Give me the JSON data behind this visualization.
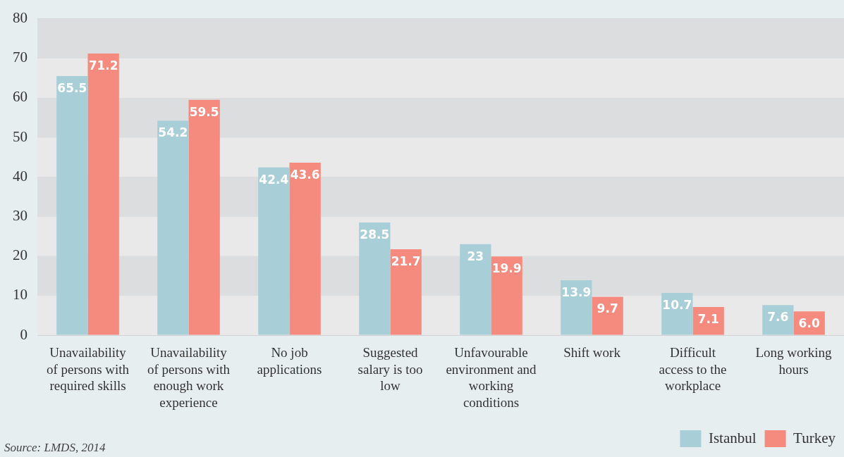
{
  "chart_data": {
    "type": "bar",
    "categories": [
      "Unavailability of persons with required skills",
      "Unavailability of persons with enough work experience",
      "No job applications",
      "Suggested salary is too low",
      "Unfavourable environment and working conditions",
      "Shift work",
      "Difficult access to the workplace",
      "Long working hours"
    ],
    "series": [
      {
        "name": "Istanbul",
        "color": "#a8cfd8",
        "values": [
          65.5,
          54.2,
          42.4,
          28.5,
          23,
          13.9,
          10.7,
          7.6
        ],
        "value_labels": [
          "65.5",
          "54.2",
          "42.4",
          "28.5",
          "23",
          "13.9",
          "10.7",
          "7.6"
        ]
      },
      {
        "name": "Turkey",
        "color": "#f48b7e",
        "values": [
          71.2,
          59.5,
          43.6,
          21.7,
          19.9,
          9.7,
          7.1,
          6.0
        ],
        "value_labels": [
          "71.2",
          "59.5",
          "43.6",
          "21.7",
          "19.9",
          "9.7",
          "7.1",
          "6.0"
        ]
      }
    ],
    "ylim": [
      0,
      80
    ],
    "yticks": [
      0,
      10,
      20,
      30,
      40,
      50,
      60,
      70,
      80
    ],
    "grid": "y",
    "legend": "bottom right",
    "annotations": [
      "Source: LMDS, 2014"
    ]
  }
}
